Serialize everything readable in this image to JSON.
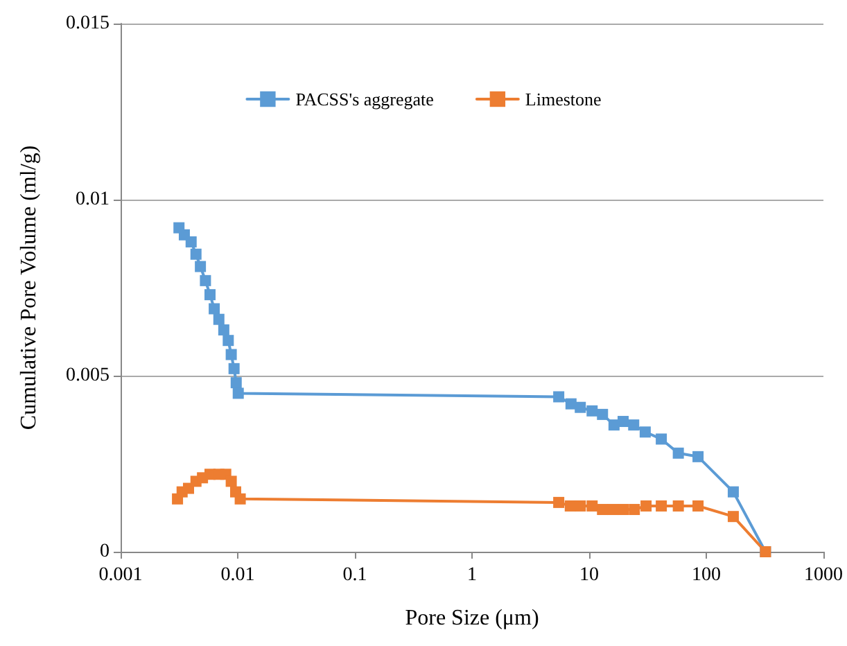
{
  "chart_data": {
    "type": "line",
    "xlabel": "Pore Size (μm)",
    "ylabel": "Cumulative Pore Volume (ml/g)",
    "log": "x",
    "xlim": [
      0.001,
      1000
    ],
    "xticks": [
      0.001,
      0.01,
      0.1,
      1,
      10,
      100,
      1000
    ],
    "ylim": [
      0,
      0.015
    ],
    "yticks": [
      0,
      0.005,
      0.01,
      0.015
    ],
    "grid": "y",
    "legend": "top",
    "marker": "square",
    "line_style": "solid",
    "series": [
      {
        "name": "PACSS's aggregate",
        "color": "#5b9bd5",
        "x": [
          0.00315,
          0.0035,
          0.004,
          0.0044,
          0.0048,
          0.0053,
          0.0058,
          0.0063,
          0.0069,
          0.0076,
          0.0083,
          0.0088,
          0.0093,
          0.0097,
          0.0101,
          5.5,
          7.0,
          8.4,
          10.6,
          13.0,
          16.3,
          19.5,
          24.0,
          30.1,
          41.3,
          57.7,
          85,
          170,
          320
        ],
        "values": [
          0.0092,
          0.009,
          0.0088,
          0.00845,
          0.0081,
          0.0077,
          0.0073,
          0.0069,
          0.0066,
          0.0063,
          0.006,
          0.0056,
          0.0052,
          0.0048,
          0.0045,
          0.0044,
          0.0042,
          0.0041,
          0.004,
          0.0039,
          0.0036,
          0.0037,
          0.0036,
          0.0034,
          0.0032,
          0.0028,
          0.0027,
          0.0017,
          0
        ]
      },
      {
        "name": "Limestone",
        "color": "#ed7d31",
        "x": [
          0.00306,
          0.00335,
          0.0038,
          0.0044,
          0.005,
          0.0058,
          0.0069,
          0.0079,
          0.0088,
          0.0096,
          0.0105,
          5.5,
          6.9,
          8.4,
          10.6,
          13.0,
          15.9,
          19.5,
          24.3,
          30.6,
          41.3,
          57.7,
          85,
          170,
          320
        ],
        "values": [
          0.0015,
          0.0017,
          0.0018,
          0.002,
          0.0021,
          0.0022,
          0.0022,
          0.0022,
          0.002,
          0.0017,
          0.0015,
          0.0014,
          0.0013,
          0.0013,
          0.0013,
          0.0012,
          0.0012,
          0.0012,
          0.0012,
          0.0013,
          0.0013,
          0.0013,
          0.0013,
          0.001,
          0
        ]
      }
    ]
  }
}
